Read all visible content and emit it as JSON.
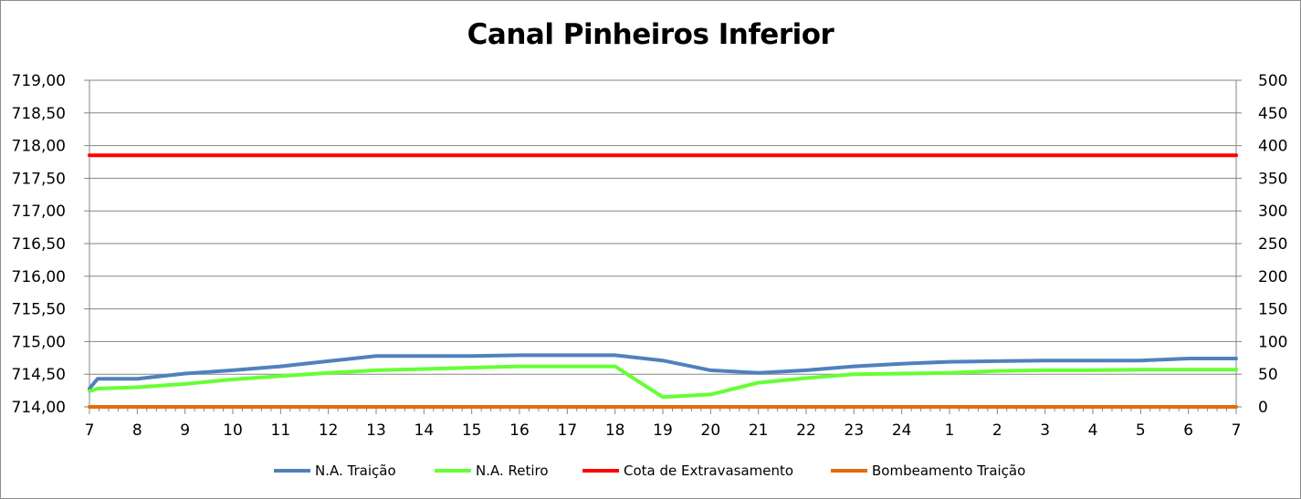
{
  "chart_data": {
    "type": "line",
    "title": "Canal Pinheiros Inferior",
    "xlabel": "",
    "ylabel": "",
    "x_tick_labels": [
      "7",
      "8",
      "9",
      "10",
      "11",
      "12",
      "13",
      "14",
      "15",
      "16",
      "17",
      "18",
      "19",
      "20",
      "21",
      "22",
      "23",
      "24",
      "1",
      "2",
      "3",
      "4",
      "5",
      "6",
      "7"
    ],
    "x_range": [
      0,
      24
    ],
    "y_left": {
      "range": [
        714.0,
        719.0
      ],
      "step": 0.5,
      "tick_labels": [
        "714,00",
        "714,50",
        "715,00",
        "715,50",
        "716,00",
        "716,50",
        "717,00",
        "717,50",
        "718,00",
        "718,50",
        "719,00"
      ]
    },
    "y_right": {
      "range": [
        0,
        500
      ],
      "step": 50,
      "tick_labels": [
        "0",
        "50",
        "100",
        "150",
        "200",
        "250",
        "300",
        "350",
        "400",
        "450",
        "500"
      ]
    },
    "grid": "horizontal",
    "legend_position": "bottom",
    "series": [
      {
        "name": "N.A. Traição",
        "axis": "left",
        "color": "#4f81bd",
        "points": [
          [
            0,
            714.28
          ],
          [
            0.17,
            714.43
          ],
          [
            1,
            714.43
          ],
          [
            2,
            714.51
          ],
          [
            3,
            714.56
          ],
          [
            4,
            714.62
          ],
          [
            5,
            714.7
          ],
          [
            6,
            714.78
          ],
          [
            7,
            714.78
          ],
          [
            8,
            714.78
          ],
          [
            9,
            714.79
          ],
          [
            10,
            714.79
          ],
          [
            11,
            714.79
          ],
          [
            12,
            714.71
          ],
          [
            13,
            714.56
          ],
          [
            14,
            714.52
          ],
          [
            15,
            714.56
          ],
          [
            16,
            714.62
          ],
          [
            17,
            714.66
          ],
          [
            18,
            714.69
          ],
          [
            19,
            714.7
          ],
          [
            20,
            714.71
          ],
          [
            21,
            714.71
          ],
          [
            22,
            714.71
          ],
          [
            23,
            714.74
          ],
          [
            24,
            714.74
          ]
        ]
      },
      {
        "name": "N.A. Retiro",
        "axis": "left",
        "color": "#66ff33",
        "points": [
          [
            0,
            714.24
          ],
          [
            0.17,
            714.28
          ],
          [
            1,
            714.3
          ],
          [
            2,
            714.35
          ],
          [
            3,
            714.42
          ],
          [
            4,
            714.47
          ],
          [
            5,
            714.52
          ],
          [
            6,
            714.56
          ],
          [
            7,
            714.58
          ],
          [
            8,
            714.6
          ],
          [
            9,
            714.62
          ],
          [
            10,
            714.62
          ],
          [
            11,
            714.62
          ],
          [
            12,
            714.15
          ],
          [
            13,
            714.19
          ],
          [
            14,
            714.37
          ],
          [
            15,
            714.44
          ],
          [
            16,
            714.5
          ],
          [
            17,
            714.51
          ],
          [
            18,
            714.52
          ],
          [
            19,
            714.55
          ],
          [
            20,
            714.56
          ],
          [
            21,
            714.56
          ],
          [
            22,
            714.57
          ],
          [
            23,
            714.57
          ],
          [
            24,
            714.57
          ]
        ]
      },
      {
        "name": "Cota de Extravasamento",
        "axis": "left",
        "color": "#ff0000",
        "points": [
          [
            0,
            717.85
          ],
          [
            24,
            717.85
          ]
        ]
      },
      {
        "name": "Bombeamento Traição",
        "axis": "right",
        "color": "#e36c09",
        "points": [
          [
            0,
            0
          ],
          [
            24,
            0
          ]
        ]
      }
    ]
  }
}
